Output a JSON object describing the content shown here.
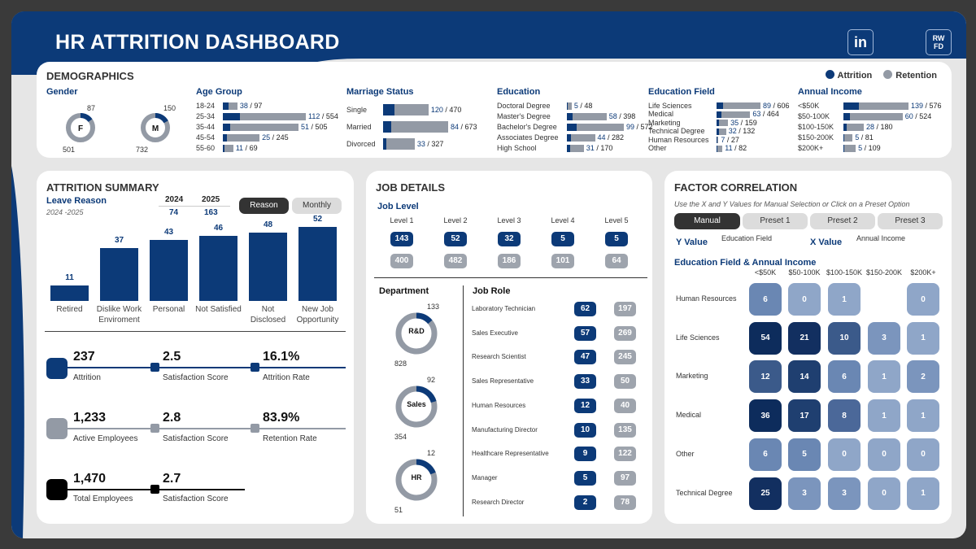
{
  "header": {
    "title": "HR ATTRITION DASHBOARD",
    "icons": [
      "linkedin-icon",
      "tableau-icon",
      "rwfd-logo"
    ],
    "rwfd_line1": "RW",
    "rwfd_line2": "FD",
    "linkedin_label": "in"
  },
  "colors": {
    "navy": "#0c3a78",
    "gray": "#939aa5",
    "dark": "#333333"
  },
  "demographics": {
    "title": "DEMOGRAPHICS",
    "legend": {
      "attrition": "Attrition",
      "retention": "Retention"
    },
    "gender": {
      "label": "Gender",
      "items": [
        {
          "letter": "F",
          "attrition": "87",
          "retention": "501"
        },
        {
          "letter": "M",
          "attrition": "150",
          "retention": "732"
        }
      ]
    },
    "age": {
      "label": "Age Group",
      "rows": [
        {
          "label": "18-24",
          "att": "38",
          "tot": "97"
        },
        {
          "label": "25-34",
          "att": "112",
          "tot": "554"
        },
        {
          "label": "35-44",
          "att": "51",
          "tot": "505"
        },
        {
          "label": "45-54",
          "att": "25",
          "tot": "245"
        },
        {
          "label": "55-60",
          "att": "11",
          "tot": "69"
        }
      ]
    },
    "marriage": {
      "label": "Marriage Status",
      "rows": [
        {
          "label": "Single",
          "att": "120",
          "tot": "470"
        },
        {
          "label": "Married",
          "att": "84",
          "tot": "673"
        },
        {
          "label": "Divorced",
          "att": "33",
          "tot": "327"
        }
      ]
    },
    "education": {
      "label": "Education",
      "rows": [
        {
          "label": "Doctoral Degree",
          "att": "5",
          "tot": "48"
        },
        {
          "label": "Master's Degree",
          "att": "58",
          "tot": "398"
        },
        {
          "label": "Bachelor's Degree",
          "att": "99",
          "tot": "572"
        },
        {
          "label": "Associates Degree",
          "att": "44",
          "tot": "282"
        },
        {
          "label": "High School",
          "att": "31",
          "tot": "170"
        }
      ]
    },
    "field": {
      "label": "Education Field",
      "rows": [
        {
          "label": "Life Sciences",
          "att": "89",
          "tot": "606"
        },
        {
          "label": "Medical",
          "att": "63",
          "tot": "464"
        },
        {
          "label": "Marketing",
          "att": "35",
          "tot": "159"
        },
        {
          "label": "Technical Degree",
          "att": "32",
          "tot": "132"
        },
        {
          "label": "Human Resources",
          "att": "7",
          "tot": "27"
        },
        {
          "label": "Other",
          "att": "11",
          "tot": "82"
        }
      ]
    },
    "income": {
      "label": "Annual Income",
      "rows": [
        {
          "label": "<$50K",
          "att": "139",
          "tot": "576"
        },
        {
          "label": "$50-100K",
          "att": "60",
          "tot": "524"
        },
        {
          "label": "$100-150K",
          "att": "28",
          "tot": "180"
        },
        {
          "label": "$150-200K",
          "att": "5",
          "tot": "81"
        },
        {
          "label": "$200K+",
          "att": "5",
          "tot": "109"
        }
      ]
    }
  },
  "attrition_summary": {
    "title": "ATTRITION SUMMARY",
    "subtitle": "Leave Reason",
    "range": "2024 -2025",
    "years": [
      {
        "year": "2024",
        "value": "74"
      },
      {
        "year": "2025",
        "value": "163"
      }
    ],
    "buttons": {
      "reason": "Reason",
      "monthly": "Monthly"
    },
    "chart_data": {
      "type": "bar",
      "categories": [
        "Retired",
        "Dislike Work Enviroment",
        "Personal",
        "Not Satisfied",
        "Not Disclosed",
        "New Job Opportunity"
      ],
      "category_lines": [
        [
          "Retired"
        ],
        [
          "Dislike Work",
          "Enviroment"
        ],
        [
          "Personal"
        ],
        [
          "Not Satisfied"
        ],
        [
          "Not",
          "Disclosed"
        ],
        [
          "New Job",
          "Opportunity"
        ]
      ],
      "values": [
        11,
        37,
        43,
        46,
        48,
        52
      ]
    },
    "kpis": [
      {
        "value": "237",
        "label": "Attrition",
        "score": "2.5",
        "score_label": "Satisfaction Score",
        "rate": "16.1%",
        "rate_label": "Attrition Rate"
      },
      {
        "value": "1,233",
        "label": "Active Employees",
        "score": "2.8",
        "score_label": "Satisfaction Score",
        "rate": "83.9%",
        "rate_label": "Retention Rate"
      },
      {
        "value": "1,470",
        "label": "Total Employees",
        "score": "2.7",
        "score_label": "Satisfaction Score"
      }
    ]
  },
  "job_details": {
    "title": "JOB DETAILS",
    "level_label": "Job Level",
    "levels": [
      {
        "label": "Level 1",
        "att": "143",
        "ret": "400"
      },
      {
        "label": "Level 2",
        "att": "52",
        "ret": "482"
      },
      {
        "label": "Level 3",
        "att": "32",
        "ret": "186"
      },
      {
        "label": "Level 4",
        "att": "5",
        "ret": "101"
      },
      {
        "label": "Level 5",
        "att": "5",
        "ret": "64"
      }
    ],
    "department_label": "Department",
    "departments": [
      {
        "name": "R&D",
        "att": "133",
        "ret": "828"
      },
      {
        "name": "Sales",
        "att": "92",
        "ret": "354"
      },
      {
        "name": "HR",
        "att": "12",
        "ret": "51"
      }
    ],
    "role_label": "Job Role",
    "roles": [
      {
        "name": "Laboratory Technician",
        "att": "62",
        "ret": "197"
      },
      {
        "name": "Sales Executive",
        "att": "57",
        "ret": "269"
      },
      {
        "name": "Research Scientist",
        "att": "47",
        "ret": "245"
      },
      {
        "name": "Sales Representative",
        "att": "33",
        "ret": "50"
      },
      {
        "name": "Human Resources",
        "att": "12",
        "ret": "40"
      },
      {
        "name": "Manufacturing Director",
        "att": "10",
        "ret": "135"
      },
      {
        "name": "Healthcare Representative",
        "att": "9",
        "ret": "122"
      },
      {
        "name": "Manager",
        "att": "5",
        "ret": "97"
      },
      {
        "name": "Research Director",
        "att": "2",
        "ret": "78"
      }
    ]
  },
  "factor_correlation": {
    "title": "FACTOR CORRELATION",
    "hint": "Use the X and Y Values for Manual Selection or Click on a Preset Option",
    "buttons": [
      "Manual",
      "Preset 1",
      "Preset 2",
      "Preset 3"
    ],
    "y_label": "Y Value",
    "y_value": "Education Field",
    "x_label": "X Value",
    "x_value": "Annual Income",
    "matrix_title": "Education Field & Annual Income",
    "columns": [
      "<$50K",
      "$50-100K",
      "$100-150K",
      "$150-200K",
      "$200K+"
    ],
    "rows": [
      {
        "label": "Human Resources",
        "values": [
          "6",
          "0",
          "1",
          "",
          "0"
        ]
      },
      {
        "label": "Life Sciences",
        "values": [
          "54",
          "21",
          "10",
          "3",
          "1"
        ]
      },
      {
        "label": "Marketing",
        "values": [
          "12",
          "14",
          "6",
          "1",
          "2"
        ]
      },
      {
        "label": "Medical",
        "values": [
          "36",
          "17",
          "8",
          "1",
          "1"
        ]
      },
      {
        "label": "Other",
        "values": [
          "6",
          "5",
          "0",
          "0",
          "0"
        ]
      },
      {
        "label": "Technical Degree",
        "values": [
          "25",
          "3",
          "3",
          "0",
          "1"
        ]
      }
    ]
  }
}
